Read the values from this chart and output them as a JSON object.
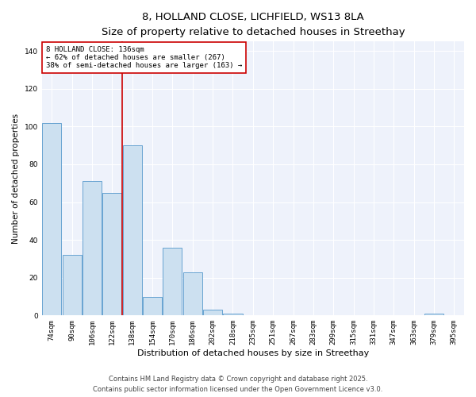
{
  "title_line1": "8, HOLLAND CLOSE, LICHFIELD, WS13 8LA",
  "title_line2": "Size of property relative to detached houses in Streethay",
  "xlabel": "Distribution of detached houses by size in Streethay",
  "ylabel": "Number of detached properties",
  "categories": [
    "74sqm",
    "90sqm",
    "106sqm",
    "122sqm",
    "138sqm",
    "154sqm",
    "170sqm",
    "186sqm",
    "202sqm",
    "218sqm",
    "235sqm",
    "251sqm",
    "267sqm",
    "283sqm",
    "299sqm",
    "315sqm",
    "331sqm",
    "347sqm",
    "363sqm",
    "379sqm",
    "395sqm"
  ],
  "values": [
    102,
    32,
    71,
    65,
    90,
    10,
    36,
    23,
    3,
    1,
    0,
    0,
    0,
    0,
    0,
    0,
    0,
    0,
    0,
    1,
    0
  ],
  "bar_color": "#cce0f0",
  "bar_edge_color": "#5599cc",
  "vline_color": "#cc0000",
  "annotation_text": "8 HOLLAND CLOSE: 136sqm\n← 62% of detached houses are smaller (267)\n38% of semi-detached houses are larger (163) →",
  "annotation_box_color": "#ffffff",
  "annotation_box_edge_color": "#cc0000",
  "ylim": [
    0,
    145
  ],
  "yticks": [
    0,
    20,
    40,
    60,
    80,
    100,
    120,
    140
  ],
  "background_color": "#eef2fb",
  "grid_color": "#ffffff",
  "footer_line1": "Contains HM Land Registry data © Crown copyright and database right 2025.",
  "footer_line2": "Contains public sector information licensed under the Open Government Licence v3.0.",
  "title_fontsize": 9.5,
  "subtitle_fontsize": 8.5,
  "annotation_fontsize": 6.5,
  "ylabel_fontsize": 7.5,
  "xlabel_fontsize": 8,
  "tick_fontsize": 6.5,
  "footer_fontsize": 6
}
